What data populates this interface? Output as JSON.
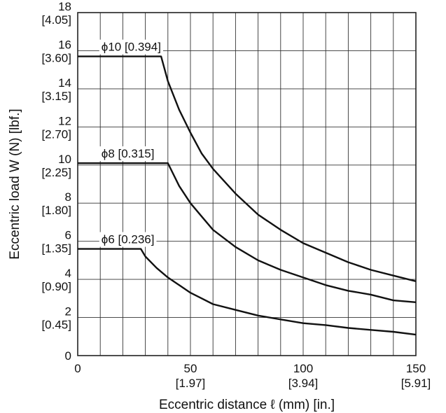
{
  "chart_data": {
    "type": "line",
    "xlabel": "Eccentric distance  ℓ (mm) [in.]",
    "ylabel": "Eccentric load W (N) [lbf.]",
    "xlim": [
      0,
      150
    ],
    "ylim": [
      0,
      18
    ],
    "grid": true,
    "x_ticks": [
      {
        "value": 0,
        "label": "0",
        "sub": ""
      },
      {
        "value": 50,
        "label": "50",
        "sub": "[1.97]"
      },
      {
        "value": 100,
        "label": "100",
        "sub": "[3.94]"
      },
      {
        "value": 150,
        "label": "150",
        "sub": "[5.91]"
      }
    ],
    "y_ticks": [
      {
        "value": 0,
        "label": "0",
        "sub": ""
      },
      {
        "value": 2,
        "label": "2",
        "sub": "[0.45]"
      },
      {
        "value": 4,
        "label": "4",
        "sub": "[0.90]"
      },
      {
        "value": 6,
        "label": "6",
        "sub": "[1.35]"
      },
      {
        "value": 8,
        "label": "8",
        "sub": "[1.80]"
      },
      {
        "value": 10,
        "label": "10",
        "sub": "[2.25]"
      },
      {
        "value": 12,
        "label": "12",
        "sub": "[2.70]"
      },
      {
        "value": 14,
        "label": "14",
        "sub": "[3.15]"
      },
      {
        "value": 16,
        "label": "16",
        "sub": "[3.60]"
      },
      {
        "value": 18,
        "label": "18",
        "sub": "[4.05]"
      }
    ],
    "series": [
      {
        "name": "ϕ10 [0.394]",
        "x": [
          0,
          5,
          10,
          15,
          20,
          25,
          30,
          35,
          37,
          40,
          45,
          50,
          55,
          60,
          70,
          80,
          90,
          100,
          110,
          120,
          130,
          140,
          150
        ],
        "y": [
          15.7,
          15.7,
          15.7,
          15.7,
          15.7,
          15.7,
          15.7,
          15.7,
          15.7,
          14.4,
          12.9,
          11.7,
          10.6,
          9.8,
          8.5,
          7.4,
          6.6,
          5.9,
          5.4,
          4.9,
          4.5,
          4.2,
          3.9
        ]
      },
      {
        "name": "ϕ8 [0.315]",
        "x": [
          0,
          5,
          10,
          15,
          20,
          25,
          30,
          35,
          40,
          45,
          50,
          55,
          60,
          70,
          80,
          90,
          100,
          110,
          120,
          130,
          140,
          150
        ],
        "y": [
          10.1,
          10.1,
          10.1,
          10.1,
          10.1,
          10.1,
          10.1,
          10.1,
          10.1,
          8.9,
          8.0,
          7.3,
          6.6,
          5.7,
          5.0,
          4.5,
          4.1,
          3.7,
          3.4,
          3.2,
          2.9,
          2.8
        ]
      },
      {
        "name": "ϕ6 [0.236]",
        "x": [
          0,
          5,
          10,
          15,
          20,
          25,
          28,
          30,
          35,
          40,
          45,
          50,
          55,
          60,
          70,
          80,
          90,
          100,
          110,
          120,
          130,
          140,
          150
        ],
        "y": [
          5.6,
          5.6,
          5.6,
          5.6,
          5.6,
          5.6,
          5.6,
          5.2,
          4.6,
          4.1,
          3.7,
          3.3,
          3.0,
          2.7,
          2.4,
          2.1,
          1.9,
          1.7,
          1.6,
          1.45,
          1.35,
          1.25,
          1.1
        ]
      }
    ]
  }
}
